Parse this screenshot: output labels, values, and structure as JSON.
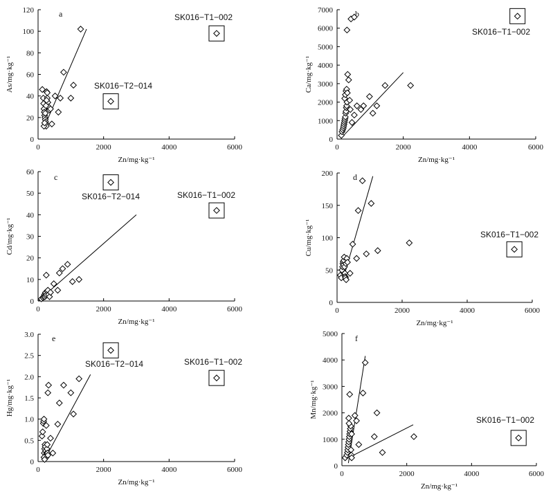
{
  "chart_data": [
    {
      "panel": "a",
      "type": "scatter",
      "xlabel": "Zn/mg·kg⁻¹",
      "ylabel": "As/mg·kg⁻¹",
      "xlim": [
        0,
        6000
      ],
      "ylim": [
        0,
        120
      ],
      "xticks": [
        0,
        2000,
        4000,
        6000
      ],
      "yticks": [
        0,
        20,
        40,
        60,
        80,
        100,
        120
      ],
      "points": [
        [
          130,
          46
        ],
        [
          160,
          38
        ],
        [
          170,
          33
        ],
        [
          180,
          28
        ],
        [
          190,
          25
        ],
        [
          200,
          22
        ],
        [
          210,
          20
        ],
        [
          220,
          18
        ],
        [
          230,
          16
        ],
        [
          240,
          14
        ],
        [
          250,
          12
        ],
        [
          260,
          44
        ],
        [
          280,
          38
        ],
        [
          300,
          34
        ],
        [
          320,
          30
        ],
        [
          350,
          27
        ],
        [
          180,
          12
        ],
        [
          200,
          15
        ],
        [
          220,
          24
        ],
        [
          240,
          31
        ],
        [
          260,
          36
        ],
        [
          280,
          43
        ],
        [
          380,
          28
        ],
        [
          420,
          14
        ],
        [
          520,
          40
        ],
        [
          620,
          25
        ],
        [
          680,
          38
        ],
        [
          780,
          62
        ],
        [
          1000,
          38
        ],
        [
          1080,
          50
        ],
        [
          1300,
          102
        ]
      ],
      "boxed_points": [
        {
          "label": "SK016−T1−002",
          "x": 5450,
          "y": 98
        },
        {
          "label": "SK016−T2−014",
          "x": 2220,
          "y": 35
        }
      ],
      "fit_lines": [
        [
          [
            200,
            12
          ],
          [
            1480,
            102
          ]
        ]
      ]
    },
    {
      "panel": "b",
      "type": "scatter",
      "xlabel": "Zn/mg·kg⁻¹",
      "ylabel": "Ca/mg·kg⁻¹",
      "xlim": [
        0,
        6000
      ],
      "ylim": [
        0,
        7000
      ],
      "xticks": [
        0,
        2000,
        4000,
        6000
      ],
      "yticks": [
        0,
        1000,
        2000,
        3000,
        4000,
        5000,
        6000,
        7000
      ],
      "points": [
        [
          130,
          200
        ],
        [
          150,
          400
        ],
        [
          170,
          500
        ],
        [
          190,
          600
        ],
        [
          200,
          700
        ],
        [
          210,
          800
        ],
        [
          220,
          900
        ],
        [
          230,
          1000
        ],
        [
          240,
          1100
        ],
        [
          250,
          1200
        ],
        [
          260,
          1400
        ],
        [
          270,
          1500
        ],
        [
          280,
          1700
        ],
        [
          290,
          1800
        ],
        [
          300,
          2000
        ],
        [
          230,
          2200
        ],
        [
          250,
          2400
        ],
        [
          270,
          2600
        ],
        [
          290,
          2700
        ],
        [
          310,
          2500
        ],
        [
          320,
          3500
        ],
        [
          350,
          3200
        ],
        [
          380,
          2100
        ],
        [
          400,
          1600
        ],
        [
          450,
          900
        ],
        [
          520,
          1300
        ],
        [
          600,
          1800
        ],
        [
          720,
          1600
        ],
        [
          800,
          1800
        ],
        [
          980,
          2300
        ],
        [
          1080,
          1400
        ],
        [
          1200,
          1800
        ],
        [
          1450,
          2900
        ],
        [
          2220,
          2900
        ],
        [
          300,
          5900
        ],
        [
          420,
          6500
        ],
        [
          520,
          6600
        ]
      ],
      "boxed_points": [
        {
          "label": "SK016−T1−002",
          "x": 5450,
          "y": 6650
        }
      ],
      "fit_lines": [
        [
          [
            200,
            200
          ],
          [
            2000,
            3600
          ]
        ]
      ]
    },
    {
      "panel": "c",
      "type": "scatter",
      "xlabel": "Zn/mg·kg⁻¹",
      "ylabel": "Cd/mg·kg⁻¹",
      "xlim": [
        0,
        6000
      ],
      "ylim": [
        0,
        60
      ],
      "xticks": [
        0,
        2000,
        4000,
        6000
      ],
      "yticks": [
        0,
        10,
        20,
        30,
        40,
        50,
        60
      ],
      "points": [
        [
          100,
          1
        ],
        [
          150,
          1.5
        ],
        [
          170,
          2
        ],
        [
          190,
          2.5
        ],
        [
          200,
          3
        ],
        [
          210,
          2
        ],
        [
          220,
          3.5
        ],
        [
          230,
          4
        ],
        [
          240,
          2.5
        ],
        [
          260,
          3
        ],
        [
          280,
          4.5
        ],
        [
          300,
          5
        ],
        [
          320,
          3
        ],
        [
          350,
          2
        ],
        [
          380,
          4
        ],
        [
          250,
          12
        ],
        [
          480,
          8
        ],
        [
          600,
          5
        ],
        [
          650,
          13
        ],
        [
          750,
          15
        ],
        [
          900,
          17
        ],
        [
          1050,
          9
        ],
        [
          1250,
          10
        ]
      ],
      "boxed_points": [
        {
          "label": "SK016−T1−002",
          "x": 5450,
          "y": 42
        },
        {
          "label": "SK016−T2−014",
          "x": 2220,
          "y": 55
        }
      ],
      "fit_lines": [
        [
          [
            0,
            0
          ],
          [
            3000,
            40
          ]
        ]
      ]
    },
    {
      "panel": "d",
      "type": "scatter",
      "xlabel": "Zn/mg·kg⁻¹",
      "ylabel": "Cu/mg·kg⁻¹",
      "xlim": [
        0,
        6000
      ],
      "ylim": [
        0,
        200
      ],
      "xticks": [
        0,
        2000,
        4000,
        6000
      ],
      "yticks": [
        0,
        50,
        100,
        150,
        200
      ],
      "points": [
        [
          100,
          42
        ],
        [
          130,
          38
        ],
        [
          150,
          50
        ],
        [
          170,
          55
        ],
        [
          180,
          60
        ],
        [
          190,
          63
        ],
        [
          200,
          58
        ],
        [
          210,
          65
        ],
        [
          220,
          70
        ],
        [
          230,
          55
        ],
        [
          240,
          45
        ],
        [
          250,
          40
        ],
        [
          260,
          38
        ],
        [
          270,
          60
        ],
        [
          280,
          35
        ],
        [
          300,
          68
        ],
        [
          320,
          62
        ],
        [
          400,
          45
        ],
        [
          480,
          90
        ],
        [
          600,
          68
        ],
        [
          650,
          142
        ],
        [
          780,
          188
        ],
        [
          900,
          75
        ],
        [
          1050,
          153
        ],
        [
          1250,
          80
        ],
        [
          2220,
          92
        ]
      ],
      "boxed_points": [
        {
          "label": "SK016−T1−002",
          "x": 5450,
          "y": 82
        }
      ],
      "fit_lines": [
        [
          [
            200,
            38
          ],
          [
            1100,
            195
          ]
        ]
      ]
    },
    {
      "panel": "e",
      "type": "scatter",
      "xlabel": "Zn/mg·kg⁻¹",
      "ylabel": "Hg/mg·kg⁻¹",
      "xlim": [
        0,
        6000
      ],
      "ylim": [
        0,
        3.0
      ],
      "xticks": [
        0,
        2000,
        4000,
        6000
      ],
      "yticks": [
        0,
        0.5,
        1.0,
        1.5,
        2.0,
        2.5,
        3.0
      ],
      "ytick_labels": [
        "0",
        "0.5",
        "1.0",
        "1.5",
        "2.0",
        "2.5",
        "3.0"
      ],
      "points": [
        [
          120,
          0.6
        ],
        [
          140,
          0.7
        ],
        [
          160,
          0.9
        ],
        [
          170,
          0.95
        ],
        [
          180,
          1.0
        ],
        [
          190,
          0.2
        ],
        [
          200,
          0.3
        ],
        [
          210,
          0.4
        ],
        [
          220,
          0.35
        ],
        [
          230,
          0.25
        ],
        [
          240,
          0.15
        ],
        [
          250,
          0.1
        ],
        [
          260,
          0.2
        ],
        [
          270,
          0.3
        ],
        [
          280,
          0.4
        ],
        [
          290,
          0.2
        ],
        [
          300,
          0.15
        ],
        [
          180,
          0.1
        ],
        [
          200,
          0.05
        ],
        [
          250,
          0.85
        ],
        [
          300,
          1.62
        ],
        [
          320,
          1.8
        ],
        [
          380,
          0.55
        ],
        [
          450,
          0.2
        ],
        [
          600,
          0.88
        ],
        [
          650,
          1.38
        ],
        [
          780,
          1.8
        ],
        [
          1000,
          1.62
        ],
        [
          1080,
          1.12
        ],
        [
          1250,
          1.95
        ]
      ],
      "boxed_points": [
        {
          "label": "SK016−T1−002",
          "x": 5450,
          "y": 1.97
        },
        {
          "label": "SK016−T2−014",
          "x": 2220,
          "y": 2.62
        }
      ],
      "fit_lines": [
        [
          [
            200,
            0.05
          ],
          [
            1600,
            2.05
          ]
        ]
      ]
    },
    {
      "panel": "f",
      "type": "scatter",
      "xlabel": "Zn/mg·kg⁻¹",
      "ylabel": "Mn/mg·kg⁻¹",
      "xlim": [
        0,
        6000
      ],
      "ylim": [
        0,
        5000
      ],
      "xticks": [
        0,
        2000,
        4000,
        6000
      ],
      "yticks": [
        0,
        1000,
        2000,
        3000,
        4000,
        5000
      ],
      "points": [
        [
          100,
          300
        ],
        [
          150,
          400
        ],
        [
          170,
          500
        ],
        [
          180,
          600
        ],
        [
          190,
          700
        ],
        [
          200,
          800
        ],
        [
          210,
          900
        ],
        [
          220,
          1000
        ],
        [
          230,
          1100
        ],
        [
          240,
          1200
        ],
        [
          250,
          1300
        ],
        [
          260,
          1400
        ],
        [
          270,
          1500
        ],
        [
          280,
          600
        ],
        [
          290,
          400
        ],
        [
          300,
          300
        ],
        [
          210,
          1800
        ],
        [
          220,
          1600
        ],
        [
          240,
          2700
        ],
        [
          300,
          1200
        ],
        [
          400,
          1900
        ],
        [
          450,
          1700
        ],
        [
          520,
          800
        ],
        [
          650,
          2750
        ],
        [
          720,
          3900
        ],
        [
          1000,
          1100
        ],
        [
          1080,
          2000
        ],
        [
          1250,
          500
        ],
        [
          2220,
          1100
        ]
      ],
      "boxed_points": [
        {
          "label": "SK016−T1−002",
          "x": 5450,
          "y": 1050
        }
      ],
      "fit_lines": [
        [
          [
            200,
            100
          ],
          [
            720,
            4150
          ]
        ],
        [
          [
            200,
            300
          ],
          [
            2200,
            1550
          ]
        ]
      ]
    }
  ]
}
